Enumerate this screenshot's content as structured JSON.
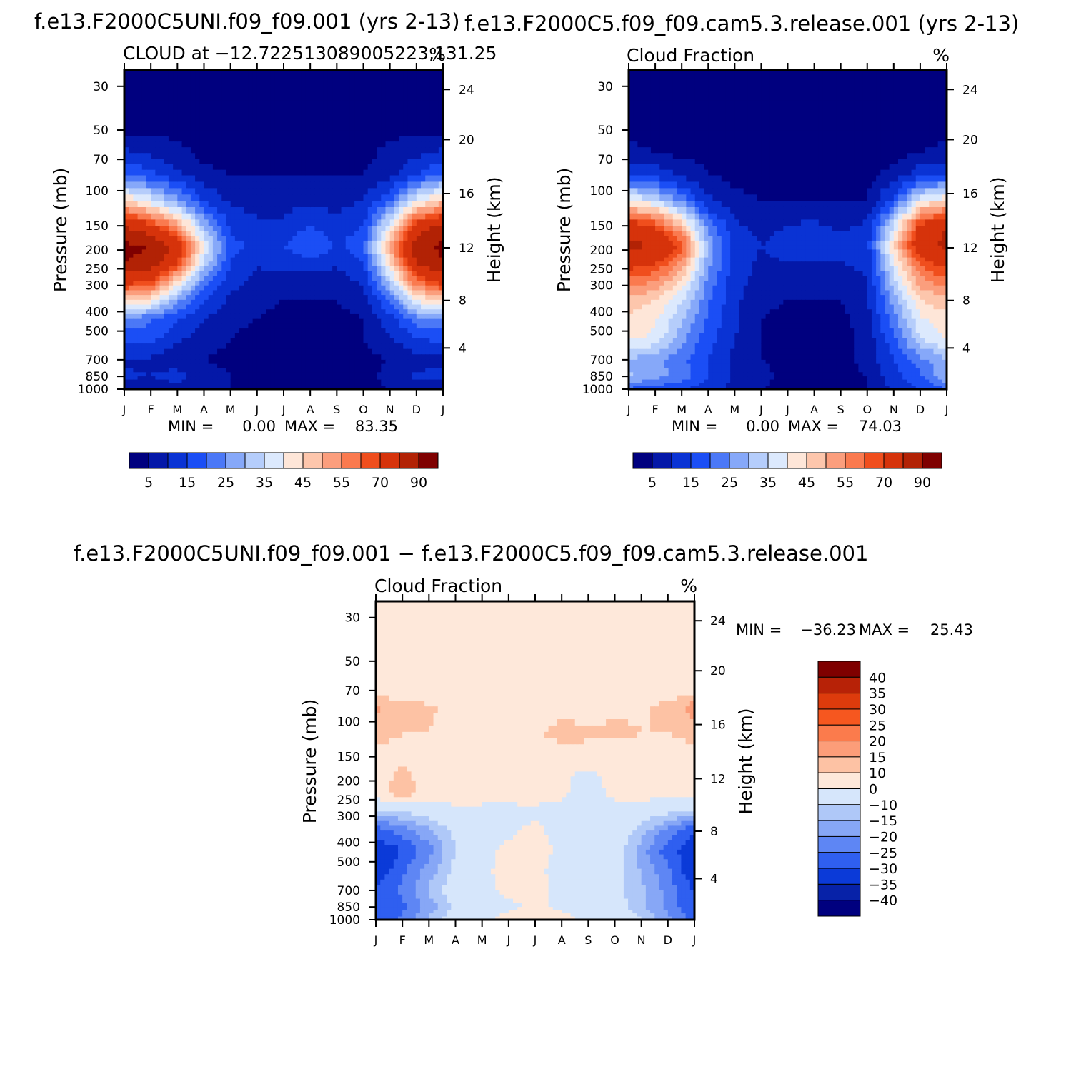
{
  "palette": {
    "seq": [
      "#00007f",
      "#0418a8",
      "#0a33d4",
      "#1b4ef5",
      "#4b78f7",
      "#86a8f9",
      "#b5cdfb",
      "#dce9fd",
      "#fee6d8",
      "#fdc6ac",
      "#fb9e7d",
      "#fa7a4f",
      "#f04e1d",
      "#d6330b",
      "#b22205",
      "#7f0000"
    ],
    "diff": [
      "#7f0000",
      "#b72207",
      "#dd3b0c",
      "#f6571f",
      "#fb7b4c",
      "#fc9d79",
      "#fdc2a4",
      "#fee8da",
      "#d6e6fb",
      "#afc8f8",
      "#87a7f6",
      "#5e86f4",
      "#2f5ff0",
      "#0b3ad8",
      "#0722a8",
      "#00007f"
    ]
  },
  "chart_data": [
    {
      "type": "heatmap",
      "id": "panel-a",
      "main_title": "f.e13.F2000C5UNI.f09_f09.001  (yrs 2-13)",
      "title_left": "CLOUD at −12.722513089005223,131.25",
      "title_right": "%",
      "ylabel": "Pressure (mb)",
      "y2label": "Height (km)",
      "xticks": [
        "J",
        "F",
        "M",
        "A",
        "M",
        "J",
        "J",
        "A",
        "S",
        "O",
        "N",
        "D",
        "J"
      ],
      "yticks": [
        "30",
        "50",
        "70",
        "100",
        "150",
        "200",
        "250",
        "300",
        "400",
        "500",
        "700",
        "850",
        "1000"
      ],
      "y2ticks": [
        "24",
        "20",
        "16",
        "12",
        "8",
        "4"
      ],
      "min_label": "MIN =",
      "min_value": "0.00",
      "max_label": "MAX =",
      "max_value": "83.35",
      "colorbar_labels": [
        "5",
        "15",
        "25",
        "35",
        "45",
        "55",
        "70",
        "90"
      ],
      "levels": [
        1,
        5,
        10,
        15,
        20,
        25,
        30,
        35,
        40,
        45,
        50,
        55,
        60,
        70,
        80,
        90
      ],
      "z": [
        [
          0,
          0,
          0,
          0,
          0,
          0,
          0,
          0,
          0,
          0,
          0,
          0,
          0
        ],
        [
          0,
          0,
          0,
          0,
          0,
          0,
          0,
          0,
          0,
          0,
          0,
          0,
          0
        ],
        [
          6,
          4,
          2,
          0,
          0,
          0,
          0,
          0,
          0,
          0,
          2,
          4,
          6
        ],
        [
          16,
          12,
          6,
          2,
          1,
          1,
          1,
          1,
          1,
          1,
          3,
          10,
          16
        ],
        [
          40,
          32,
          22,
          10,
          4,
          3,
          3,
          4,
          3,
          5,
          15,
          34,
          42
        ],
        [
          70,
          62,
          48,
          24,
          9,
          6,
          6,
          10,
          7,
          10,
          34,
          64,
          72
        ],
        [
          82,
          80,
          66,
          34,
          12,
          8,
          10,
          16,
          9,
          14,
          46,
          76,
          82
        ],
        [
          80,
          78,
          62,
          30,
          10,
          6,
          7,
          8,
          6,
          10,
          40,
          72,
          80
        ],
        [
          64,
          60,
          40,
          18,
          7,
          3,
          3,
          3,
          3,
          6,
          28,
          55,
          64
        ],
        [
          42,
          38,
          22,
          10,
          4,
          2,
          1,
          1,
          1,
          3,
          16,
          36,
          42
        ],
        [
          20,
          16,
          10,
          5,
          2,
          1,
          0,
          0,
          0,
          1,
          8,
          18,
          20
        ],
        [
          12,
          12,
          6,
          3,
          1,
          0,
          0,
          0,
          0,
          1,
          4,
          10,
          12
        ],
        [
          4,
          4,
          2,
          1,
          0,
          0,
          0,
          0,
          0,
          0,
          1,
          3,
          4
        ],
        [
          6,
          5,
          7,
          3,
          1,
          0,
          0,
          0,
          0,
          0,
          2,
          6,
          6
        ],
        [
          2,
          2,
          3,
          2,
          1,
          0,
          0,
          0,
          0,
          0,
          1,
          2,
          2
        ]
      ]
    },
    {
      "type": "heatmap",
      "id": "panel-b",
      "main_title": "f.e13.F2000C5.f09_f09.cam5.3.release.001  (yrs 2-13)",
      "title_left": "Cloud Fraction",
      "title_right": "%",
      "ylabel": "Pressure (mb)",
      "y2label": "Height (km)",
      "xticks": [
        "J",
        "F",
        "M",
        "A",
        "M",
        "J",
        "J",
        "A",
        "S",
        "O",
        "N",
        "D",
        "J"
      ],
      "yticks": [
        "30",
        "50",
        "70",
        "100",
        "150",
        "200",
        "250",
        "300",
        "400",
        "500",
        "700",
        "850",
        "1000"
      ],
      "y2ticks": [
        "24",
        "20",
        "16",
        "12",
        "8",
        "4"
      ],
      "min_label": "MIN =",
      "min_value": "0.00",
      "max_label": "MAX =",
      "max_value": "74.03",
      "colorbar_labels": [
        "5",
        "15",
        "25",
        "35",
        "45",
        "55",
        "70",
        "90"
      ],
      "levels": [
        1,
        5,
        10,
        15,
        20,
        25,
        30,
        35,
        40,
        45,
        50,
        55,
        60,
        70,
        80,
        90
      ],
      "z": [
        [
          0,
          0,
          0,
          0,
          0,
          0,
          0,
          0,
          0,
          0,
          0,
          0,
          0
        ],
        [
          0,
          0,
          0,
          0,
          0,
          0,
          0,
          0,
          0,
          0,
          0,
          0,
          0
        ],
        [
          2,
          1,
          0,
          0,
          0,
          0,
          0,
          0,
          0,
          0,
          0,
          1,
          2
        ],
        [
          10,
          8,
          4,
          1,
          0,
          0,
          0,
          0,
          0,
          0,
          2,
          8,
          10
        ],
        [
          36,
          30,
          18,
          6,
          2,
          1,
          1,
          1,
          1,
          1,
          12,
          34,
          40
        ],
        [
          66,
          60,
          44,
          18,
          6,
          3,
          5,
          6,
          4,
          6,
          30,
          62,
          70
        ],
        [
          72,
          70,
          58,
          24,
          8,
          5,
          8,
          9,
          7,
          8,
          40,
          68,
          72
        ],
        [
          64,
          62,
          50,
          22,
          8,
          4,
          5,
          5,
          5,
          6,
          34,
          58,
          64
        ],
        [
          54,
          50,
          40,
          18,
          7,
          3,
          3,
          3,
          3,
          5,
          28,
          48,
          54
        ],
        [
          44,
          40,
          30,
          16,
          6,
          2,
          1,
          1,
          1,
          4,
          22,
          40,
          44
        ],
        [
          38,
          36,
          26,
          14,
          6,
          1,
          0,
          0,
          0,
          3,
          18,
          34,
          38
        ],
        [
          36,
          34,
          22,
          12,
          5,
          1,
          0,
          0,
          0,
          2,
          14,
          30,
          36
        ],
        [
          24,
          22,
          16,
          10,
          4,
          1,
          0,
          0,
          0,
          2,
          10,
          18,
          24
        ],
        [
          26,
          22,
          18,
          10,
          4,
          2,
          0,
          0,
          0,
          1,
          8,
          14,
          26
        ],
        [
          14,
          12,
          10,
          8,
          3,
          1,
          0,
          0,
          0,
          1,
          6,
          10,
          14
        ]
      ]
    },
    {
      "type": "heatmap",
      "id": "panel-c",
      "main_title": "f.e13.F2000C5UNI.f09_f09.001 − f.e13.F2000C5.f09_f09.cam5.3.release.001",
      "title_left": "Cloud Fraction",
      "title_right": "%",
      "ylabel": "Pressure (mb)",
      "y2label": "Height (km)",
      "xticks": [
        "J",
        "F",
        "M",
        "A",
        "M",
        "J",
        "J",
        "A",
        "S",
        "O",
        "N",
        "D",
        "J"
      ],
      "yticks": [
        "30",
        "50",
        "70",
        "100",
        "150",
        "200",
        "250",
        "300",
        "400",
        "500",
        "700",
        "850",
        "1000"
      ],
      "y2ticks": [
        "24",
        "20",
        "16",
        "12",
        "8",
        "4"
      ],
      "min_label": "MIN =",
      "min_value": "−36.23",
      "max_label": "MAX =",
      "max_value": "25.43",
      "colorbar_labels": [
        "40",
        "35",
        "30",
        "25",
        "20",
        "15",
        "10",
        "0",
        "−10",
        "−15",
        "−20",
        "−25",
        "−30",
        "−35",
        "−40"
      ],
      "levels": [
        -40,
        -35,
        -30,
        -25,
        -20,
        -15,
        -10,
        0,
        10,
        15,
        20,
        25,
        30,
        35,
        40
      ],
      "z": [
        [
          2,
          2,
          2,
          2,
          2,
          2,
          2,
          2,
          2,
          2,
          2,
          2,
          2
        ],
        [
          2,
          2,
          2,
          2,
          2,
          2,
          2,
          2,
          2,
          2,
          2,
          2,
          2
        ],
        [
          4,
          3,
          2,
          2,
          2,
          2,
          2,
          2,
          2,
          2,
          2,
          3,
          4
        ],
        [
          16,
          12,
          11,
          8,
          6,
          4,
          4,
          7,
          6,
          8,
          9,
          12,
          18
        ],
        [
          12,
          10,
          10,
          8,
          8,
          7,
          9,
          13,
          11,
          12,
          10,
          10,
          12
        ],
        [
          8,
          9,
          6,
          7,
          10,
          5,
          6,
          6,
          8,
          6,
          7,
          8,
          8
        ],
        [
          6,
          12,
          6,
          6,
          8,
          4,
          5,
          3,
          -4,
          5,
          6,
          5,
          6
        ],
        [
          4,
          16,
          6,
          6,
          5,
          3,
          4,
          2,
          -6,
          3,
          4,
          4,
          4
        ],
        [
          -12,
          -10,
          -6,
          -3,
          -3,
          -2,
          -2,
          -3,
          -6,
          -4,
          -6,
          -8,
          -12
        ],
        [
          -28,
          -22,
          -16,
          -8,
          -4,
          -2,
          2,
          -4,
          -4,
          -4,
          -12,
          -22,
          -30
        ],
        [
          -34,
          -30,
          -22,
          -10,
          -3,
          2,
          4,
          -2,
          -3,
          -5,
          -18,
          -28,
          -34
        ],
        [
          -36,
          -26,
          -18,
          -8,
          -2,
          3,
          2,
          -3,
          -4,
          -6,
          -16,
          -24,
          -36
        ],
        [
          -28,
          -24,
          -14,
          -6,
          -2,
          2,
          2,
          -2,
          -6,
          -8,
          -14,
          -22,
          -30
        ],
        [
          -30,
          -26,
          -18,
          -8,
          -3,
          -2,
          2,
          -2,
          -4,
          -6,
          -14,
          -22,
          -30
        ],
        [
          -28,
          -24,
          -14,
          -6,
          -2,
          3,
          2,
          3,
          -2,
          -3,
          -10,
          -18,
          -28
        ]
      ]
    }
  ]
}
